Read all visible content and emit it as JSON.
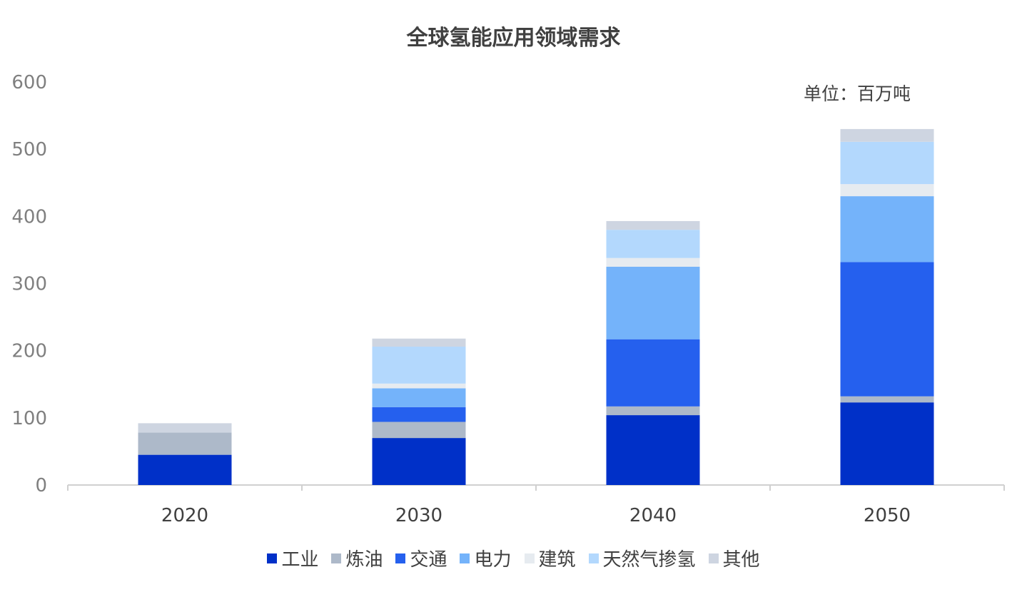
{
  "chart_data": {
    "type": "bar",
    "stacked": true,
    "title": "全球氢能应用领域需求",
    "unit_label": "单位：百万吨",
    "xlabel": "",
    "ylabel": "",
    "ylim": [
      0,
      600
    ],
    "yticks": [
      0,
      100,
      200,
      300,
      400,
      500,
      600
    ],
    "grid": false,
    "legend_position": "bottom",
    "categories": [
      "2020",
      "2030",
      "2040",
      "2050"
    ],
    "series": [
      {
        "name": "工业",
        "color": "#0030C8",
        "values": [
          45,
          70,
          104,
          123
        ]
      },
      {
        "name": "炼油",
        "color": "#ADB9C9",
        "values": [
          33,
          24,
          13,
          9
        ]
      },
      {
        "name": "交通",
        "color": "#2560EE",
        "values": [
          0,
          22,
          100,
          200
        ]
      },
      {
        "name": "电力",
        "color": "#74B3FA",
        "values": [
          0,
          28,
          108,
          98
        ]
      },
      {
        "name": "建筑",
        "color": "#E6EBF0",
        "values": [
          0,
          7,
          13,
          18
        ]
      },
      {
        "name": "天然气掺氢",
        "color": "#B3D8FD",
        "values": [
          0,
          55,
          42,
          63
        ]
      },
      {
        "name": "其他",
        "color": "#CED5E1",
        "values": [
          14,
          12,
          13,
          19
        ]
      }
    ]
  }
}
